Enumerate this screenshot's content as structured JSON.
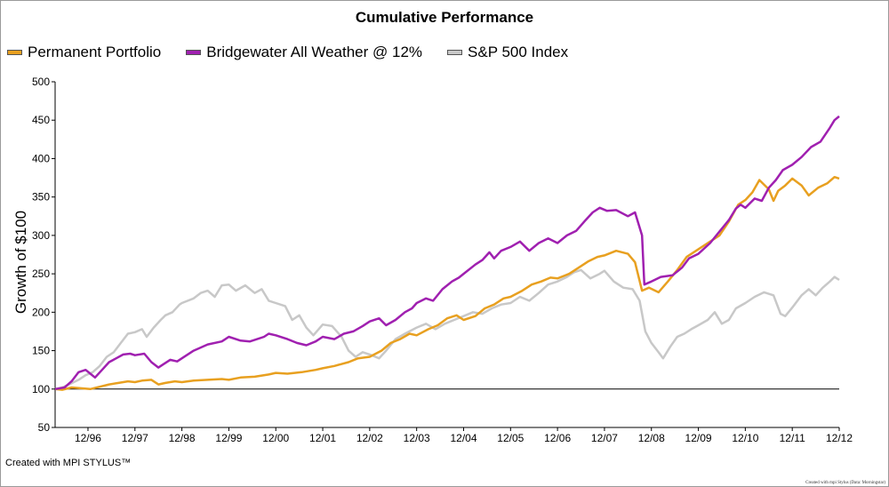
{
  "chart_data": {
    "type": "line",
    "title": "Cumulative Performance",
    "ylabel": "Growth of $100",
    "xlabel": "",
    "ylim": [
      50,
      500
    ],
    "yticks": [
      50,
      100,
      150,
      200,
      250,
      300,
      350,
      400,
      450,
      500
    ],
    "xlim": [
      1996.25,
      2012.95
    ],
    "xticks": [
      {
        "label": "12/96",
        "x": 1996.95
      },
      {
        "label": "12/97",
        "x": 1997.95
      },
      {
        "label": "12/98",
        "x": 1998.95
      },
      {
        "label": "12/99",
        "x": 1999.95
      },
      {
        "label": "12/00",
        "x": 2000.95
      },
      {
        "label": "12/01",
        "x": 2001.95
      },
      {
        "label": "12/02",
        "x": 2002.95
      },
      {
        "label": "12/03",
        "x": 2003.95
      },
      {
        "label": "12/04",
        "x": 2004.95
      },
      {
        "label": "12/05",
        "x": 2005.95
      },
      {
        "label": "12/06",
        "x": 2006.95
      },
      {
        "label": "12/07",
        "x": 2007.95
      },
      {
        "label": "12/08",
        "x": 2008.95
      },
      {
        "label": "12/09",
        "x": 2009.95
      },
      {
        "label": "12/10",
        "x": 2010.95
      },
      {
        "label": "12/11",
        "x": 2011.95
      },
      {
        "label": "12/12",
        "x": 2012.95
      }
    ],
    "reference_line": 100,
    "legend_position": "top-left",
    "series": [
      {
        "name": "Permanent Portfolio",
        "color": "#e8a020",
        "points": [
          [
            1996.25,
            100
          ],
          [
            1996.4,
            99
          ],
          [
            1996.6,
            102
          ],
          [
            1996.8,
            101
          ],
          [
            1997.0,
            100
          ],
          [
            1997.2,
            103
          ],
          [
            1997.4,
            106
          ],
          [
            1997.6,
            108
          ],
          [
            1997.8,
            110
          ],
          [
            1997.95,
            109
          ],
          [
            1998.1,
            111
          ],
          [
            1998.3,
            112
          ],
          [
            1998.45,
            106
          ],
          [
            1998.6,
            108
          ],
          [
            1998.8,
            110
          ],
          [
            1998.95,
            109
          ],
          [
            1999.2,
            111
          ],
          [
            1999.5,
            112
          ],
          [
            1999.8,
            113
          ],
          [
            1999.95,
            112
          ],
          [
            2000.2,
            115
          ],
          [
            2000.5,
            116
          ],
          [
            2000.8,
            119
          ],
          [
            2000.95,
            121
          ],
          [
            2001.2,
            120
          ],
          [
            2001.5,
            122
          ],
          [
            2001.8,
            125
          ],
          [
            2001.95,
            127
          ],
          [
            2002.2,
            130
          ],
          [
            2002.5,
            135
          ],
          [
            2002.7,
            140
          ],
          [
            2002.95,
            142
          ],
          [
            2003.2,
            150
          ],
          [
            2003.4,
            160
          ],
          [
            2003.6,
            165
          ],
          [
            2003.8,
            172
          ],
          [
            2003.95,
            170
          ],
          [
            2004.2,
            178
          ],
          [
            2004.4,
            183
          ],
          [
            2004.6,
            192
          ],
          [
            2004.8,
            196
          ],
          [
            2004.95,
            190
          ],
          [
            2005.2,
            195
          ],
          [
            2005.4,
            205
          ],
          [
            2005.6,
            210
          ],
          [
            2005.8,
            218
          ],
          [
            2005.95,
            220
          ],
          [
            2006.2,
            228
          ],
          [
            2006.4,
            236
          ],
          [
            2006.6,
            240
          ],
          [
            2006.8,
            245
          ],
          [
            2006.95,
            244
          ],
          [
            2007.2,
            250
          ],
          [
            2007.4,
            258
          ],
          [
            2007.6,
            266
          ],
          [
            2007.8,
            272
          ],
          [
            2007.95,
            274
          ],
          [
            2008.2,
            280
          ],
          [
            2008.45,
            276
          ],
          [
            2008.6,
            265
          ],
          [
            2008.75,
            228
          ],
          [
            2008.9,
            232
          ],
          [
            2009.1,
            226
          ],
          [
            2009.3,
            240
          ],
          [
            2009.5,
            255
          ],
          [
            2009.7,
            272
          ],
          [
            2009.95,
            282
          ],
          [
            2010.2,
            292
          ],
          [
            2010.4,
            300
          ],
          [
            2010.6,
            318
          ],
          [
            2010.8,
            340
          ],
          [
            2010.95,
            346
          ],
          [
            2011.1,
            356
          ],
          [
            2011.25,
            372
          ],
          [
            2011.45,
            360
          ],
          [
            2011.55,
            345
          ],
          [
            2011.65,
            358
          ],
          [
            2011.8,
            365
          ],
          [
            2011.95,
            374
          ],
          [
            2012.15,
            365
          ],
          [
            2012.3,
            352
          ],
          [
            2012.5,
            362
          ],
          [
            2012.7,
            368
          ],
          [
            2012.85,
            376
          ],
          [
            2012.95,
            374
          ]
        ]
      },
      {
        "name": "Bridgewater All Weather @ 12%",
        "color": "#a020b0",
        "points": [
          [
            1996.25,
            100
          ],
          [
            1996.45,
            102
          ],
          [
            1996.6,
            110
          ],
          [
            1996.75,
            122
          ],
          [
            1996.9,
            125
          ],
          [
            1997.0,
            120
          ],
          [
            1997.1,
            115
          ],
          [
            1997.25,
            125
          ],
          [
            1997.4,
            135
          ],
          [
            1997.55,
            140
          ],
          [
            1997.7,
            145
          ],
          [
            1997.85,
            146
          ],
          [
            1997.95,
            144
          ],
          [
            1998.15,
            146
          ],
          [
            1998.3,
            135
          ],
          [
            1998.45,
            128
          ],
          [
            1998.55,
            132
          ],
          [
            1998.7,
            138
          ],
          [
            1998.85,
            136
          ],
          [
            1998.95,
            140
          ],
          [
            1999.2,
            150
          ],
          [
            1999.5,
            158
          ],
          [
            1999.8,
            162
          ],
          [
            1999.95,
            168
          ],
          [
            2000.2,
            163
          ],
          [
            2000.4,
            162
          ],
          [
            2000.7,
            168
          ],
          [
            2000.8,
            172
          ],
          [
            2000.95,
            170
          ],
          [
            2001.2,
            165
          ],
          [
            2001.4,
            160
          ],
          [
            2001.6,
            157
          ],
          [
            2001.8,
            162
          ],
          [
            2001.95,
            168
          ],
          [
            2002.2,
            165
          ],
          [
            2002.4,
            172
          ],
          [
            2002.6,
            175
          ],
          [
            2002.8,
            182
          ],
          [
            2002.95,
            188
          ],
          [
            2003.15,
            192
          ],
          [
            2003.3,
            183
          ],
          [
            2003.5,
            190
          ],
          [
            2003.7,
            200
          ],
          [
            2003.85,
            205
          ],
          [
            2003.95,
            212
          ],
          [
            2004.15,
            218
          ],
          [
            2004.3,
            215
          ],
          [
            2004.5,
            230
          ],
          [
            2004.7,
            240
          ],
          [
            2004.85,
            245
          ],
          [
            2004.95,
            250
          ],
          [
            2005.2,
            262
          ],
          [
            2005.35,
            268
          ],
          [
            2005.5,
            278
          ],
          [
            2005.6,
            270
          ],
          [
            2005.75,
            280
          ],
          [
            2005.95,
            285
          ],
          [
            2006.15,
            292
          ],
          [
            2006.35,
            280
          ],
          [
            2006.55,
            290
          ],
          [
            2006.75,
            296
          ],
          [
            2006.95,
            290
          ],
          [
            2007.15,
            300
          ],
          [
            2007.35,
            306
          ],
          [
            2007.55,
            320
          ],
          [
            2007.7,
            330
          ],
          [
            2007.85,
            336
          ],
          [
            2008.0,
            332
          ],
          [
            2008.2,
            333
          ],
          [
            2008.45,
            325
          ],
          [
            2008.6,
            330
          ],
          [
            2008.75,
            300
          ],
          [
            2008.8,
            236
          ],
          [
            2008.95,
            240
          ],
          [
            2009.15,
            246
          ],
          [
            2009.4,
            248
          ],
          [
            2009.6,
            258
          ],
          [
            2009.75,
            270
          ],
          [
            2009.95,
            276
          ],
          [
            2010.2,
            290
          ],
          [
            2010.4,
            305
          ],
          [
            2010.6,
            320
          ],
          [
            2010.75,
            335
          ],
          [
            2010.85,
            340
          ],
          [
            2010.95,
            336
          ],
          [
            2011.15,
            348
          ],
          [
            2011.3,
            345
          ],
          [
            2011.45,
            362
          ],
          [
            2011.6,
            372
          ],
          [
            2011.75,
            385
          ],
          [
            2011.95,
            392
          ],
          [
            2012.15,
            402
          ],
          [
            2012.35,
            415
          ],
          [
            2012.55,
            422
          ],
          [
            2012.75,
            440
          ],
          [
            2012.85,
            450
          ],
          [
            2012.95,
            455
          ]
        ]
      },
      {
        "name": "S&P 500 Index",
        "color": "#c8c8c8",
        "points": [
          [
            1996.25,
            100
          ],
          [
            1996.4,
            102
          ],
          [
            1996.55,
            106
          ],
          [
            1996.75,
            112
          ],
          [
            1996.9,
            118
          ],
          [
            1997.05,
            122
          ],
          [
            1997.2,
            130
          ],
          [
            1997.35,
            142
          ],
          [
            1997.5,
            148
          ],
          [
            1997.65,
            160
          ],
          [
            1997.8,
            172
          ],
          [
            1997.95,
            174
          ],
          [
            1998.1,
            178
          ],
          [
            1998.2,
            168
          ],
          [
            1998.35,
            180
          ],
          [
            1998.5,
            190
          ],
          [
            1998.6,
            196
          ],
          [
            1998.75,
            200
          ],
          [
            1998.9,
            210
          ],
          [
            1998.95,
            212
          ],
          [
            1999.2,
            218
          ],
          [
            1999.35,
            225
          ],
          [
            1999.5,
            228
          ],
          [
            1999.65,
            220
          ],
          [
            1999.8,
            235
          ],
          [
            1999.95,
            236
          ],
          [
            2000.1,
            228
          ],
          [
            2000.3,
            235
          ],
          [
            2000.5,
            225
          ],
          [
            2000.65,
            230
          ],
          [
            2000.8,
            215
          ],
          [
            2000.95,
            212
          ],
          [
            2001.15,
            208
          ],
          [
            2001.3,
            190
          ],
          [
            2001.45,
            196
          ],
          [
            2001.6,
            180
          ],
          [
            2001.75,
            170
          ],
          [
            2001.95,
            184
          ],
          [
            2002.15,
            182
          ],
          [
            2002.35,
            168
          ],
          [
            2002.5,
            150
          ],
          [
            2002.65,
            142
          ],
          [
            2002.8,
            148
          ],
          [
            2002.95,
            145
          ],
          [
            2003.15,
            140
          ],
          [
            2003.3,
            150
          ],
          [
            2003.5,
            165
          ],
          [
            2003.7,
            172
          ],
          [
            2003.95,
            180
          ],
          [
            2004.15,
            185
          ],
          [
            2004.35,
            178
          ],
          [
            2004.55,
            185
          ],
          [
            2004.75,
            190
          ],
          [
            2004.95,
            195
          ],
          [
            2005.15,
            200
          ],
          [
            2005.35,
            198
          ],
          [
            2005.55,
            205
          ],
          [
            2005.75,
            210
          ],
          [
            2005.95,
            212
          ],
          [
            2006.15,
            220
          ],
          [
            2006.35,
            215
          ],
          [
            2006.55,
            225
          ],
          [
            2006.75,
            236
          ],
          [
            2006.95,
            240
          ],
          [
            2007.15,
            246
          ],
          [
            2007.3,
            252
          ],
          [
            2007.45,
            255
          ],
          [
            2007.65,
            244
          ],
          [
            2007.85,
            250
          ],
          [
            2007.95,
            254
          ],
          [
            2008.15,
            240
          ],
          [
            2008.35,
            232
          ],
          [
            2008.55,
            230
          ],
          [
            2008.7,
            215
          ],
          [
            2008.82,
            175
          ],
          [
            2008.95,
            160
          ],
          [
            2009.1,
            148
          ],
          [
            2009.2,
            140
          ],
          [
            2009.35,
            155
          ],
          [
            2009.5,
            168
          ],
          [
            2009.65,
            172
          ],
          [
            2009.8,
            178
          ],
          [
            2009.95,
            183
          ],
          [
            2010.15,
            190
          ],
          [
            2010.3,
            200
          ],
          [
            2010.45,
            185
          ],
          [
            2010.6,
            190
          ],
          [
            2010.75,
            205
          ],
          [
            2010.95,
            212
          ],
          [
            2011.15,
            220
          ],
          [
            2011.35,
            226
          ],
          [
            2011.55,
            222
          ],
          [
            2011.7,
            198
          ],
          [
            2011.8,
            195
          ],
          [
            2011.95,
            206
          ],
          [
            2012.15,
            222
          ],
          [
            2012.3,
            230
          ],
          [
            2012.45,
            222
          ],
          [
            2012.6,
            232
          ],
          [
            2012.75,
            240
          ],
          [
            2012.85,
            246
          ],
          [
            2012.95,
            242
          ]
        ]
      }
    ]
  },
  "footer": {
    "left": "Created with MPI STYLUS™",
    "right": "Created with mpi Stylus (Data: Morningstar)"
  }
}
